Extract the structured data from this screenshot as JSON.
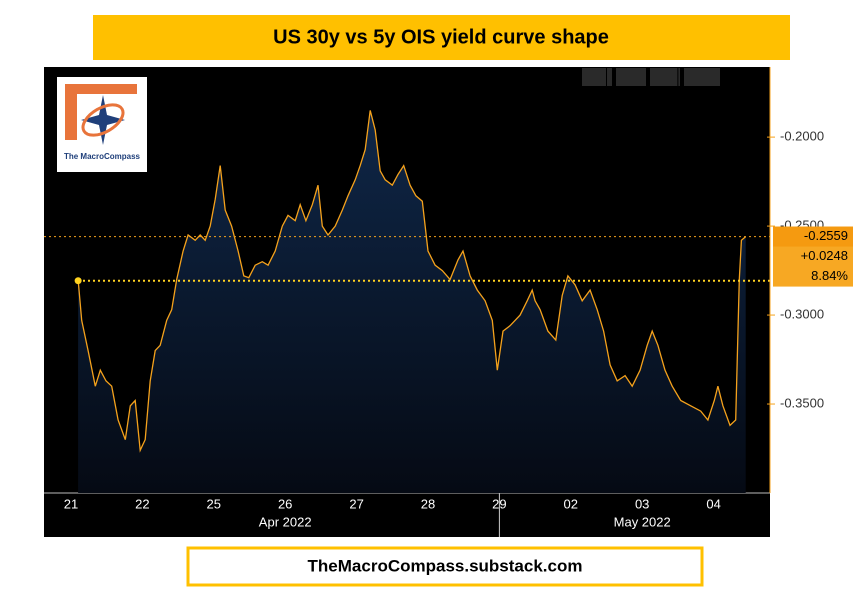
{
  "chart_data": {
    "type": "line",
    "title": "US 30y vs 5y OIS yield curve shape",
    "footer": "TheMacroCompass.substack.com",
    "logo_text": "The MacroCompass",
    "color": "#f5a21c",
    "area_color": "#0f2748",
    "grid": false,
    "x": [
      0.1,
      0.15,
      0.24,
      0.34,
      0.41,
      0.49,
      0.57,
      0.66,
      0.76,
      0.83,
      0.9,
      0.97,
      1.04,
      1.11,
      1.18,
      1.25,
      1.34,
      1.41,
      1.48,
      1.57,
      1.64,
      1.74,
      1.81,
      1.88,
      1.95,
      2.02,
      2.09,
      2.16,
      2.25,
      2.34,
      2.42,
      2.49,
      2.58,
      2.68,
      2.76,
      2.86,
      2.96,
      3.04,
      3.14,
      3.21,
      3.29,
      3.38,
      3.46,
      3.52,
      3.6,
      3.7,
      3.8,
      3.88,
      3.98,
      4.05,
      4.12,
      4.19,
      4.26,
      4.33,
      4.4,
      4.5,
      4.58,
      4.66,
      4.75,
      4.83,
      4.92,
      5.0,
      5.1,
      5.2,
      5.31,
      5.42,
      5.49,
      5.59,
      5.69,
      5.8,
      5.9,
      5.97,
      6.05,
      6.15,
      6.29,
      6.39,
      6.46,
      6.5,
      6.57,
      6.68,
      6.79,
      6.88,
      6.96,
      7.06,
      7.16,
      7.27,
      7.37,
      7.46,
      7.55,
      7.65,
      7.76,
      7.86,
      7.97,
      8.07,
      8.14,
      8.22,
      8.32,
      8.42,
      8.54,
      8.68,
      8.82,
      8.92,
      9.01,
      9.06,
      9.13,
      9.23,
      9.31,
      9.36,
      9.39,
      9.45
    ],
    "values": [
      -0.28,
      -0.303,
      -0.32,
      -0.34,
      -0.331,
      -0.337,
      -0.34,
      -0.359,
      -0.37,
      -0.351,
      -0.348,
      -0.376,
      -0.37,
      -0.337,
      -0.32,
      -0.317,
      -0.303,
      -0.297,
      -0.28,
      -0.264,
      -0.255,
      -0.258,
      -0.255,
      -0.258,
      -0.25,
      -0.235,
      -0.216,
      -0.241,
      -0.25,
      -0.264,
      -0.278,
      -0.279,
      -0.272,
      -0.27,
      -0.272,
      -0.264,
      -0.25,
      -0.244,
      -0.247,
      -0.238,
      -0.247,
      -0.238,
      -0.227,
      -0.25,
      -0.255,
      -0.25,
      -0.241,
      -0.233,
      -0.224,
      -0.216,
      -0.207,
      -0.185,
      -0.196,
      -0.219,
      -0.224,
      -0.227,
      -0.221,
      -0.216,
      -0.227,
      -0.233,
      -0.236,
      -0.264,
      -0.272,
      -0.275,
      -0.28,
      -0.269,
      -0.264,
      -0.278,
      -0.286,
      -0.292,
      -0.303,
      -0.331,
      -0.309,
      -0.306,
      -0.3,
      -0.292,
      -0.286,
      -0.292,
      -0.297,
      -0.309,
      -0.314,
      -0.289,
      -0.278,
      -0.283,
      -0.292,
      -0.286,
      -0.297,
      -0.309,
      -0.328,
      -0.337,
      -0.334,
      -0.34,
      -0.331,
      -0.317,
      -0.309,
      -0.317,
      -0.331,
      -0.34,
      -0.348,
      -0.351,
      -0.354,
      -0.359,
      -0.348,
      -0.34,
      -0.351,
      -0.362,
      -0.359,
      -0.28,
      -0.258,
      -0.2559
    ],
    "xlim": [
      -0.378,
      9.79
    ],
    "xticks": [
      {
        "value": 0,
        "label": "21"
      },
      {
        "value": 1,
        "label": "22"
      },
      {
        "value": 2,
        "label": "25"
      },
      {
        "value": 3,
        "label": "26"
      },
      {
        "value": 4,
        "label": "27"
      },
      {
        "value": 5,
        "label": "28"
      },
      {
        "value": 6,
        "label": "29"
      },
      {
        "value": 7,
        "label": "02"
      },
      {
        "value": 8,
        "label": "03"
      },
      {
        "value": 9,
        "label": "04"
      }
    ],
    "x_groups": [
      {
        "value": 3,
        "label": "Apr 2022"
      },
      {
        "value": 8,
        "label": "May 2022"
      }
    ],
    "ylim": [
      -0.4,
      -0.1606
    ],
    "yticks": [
      {
        "value": -0.2,
        "label": "-0.2000"
      },
      {
        "value": -0.25,
        "label": "-0.2500"
      },
      {
        "value": -0.3,
        "label": "-0.3000"
      },
      {
        "value": -0.35,
        "label": "-0.3500"
      }
    ],
    "last_labels": [
      {
        "value": -0.2559,
        "label": "-0.2559"
      },
      {
        "value": 0.0248,
        "label": "+0.0248"
      },
      {
        "value": 8.84,
        "label": "8.84%"
      }
    ]
  }
}
